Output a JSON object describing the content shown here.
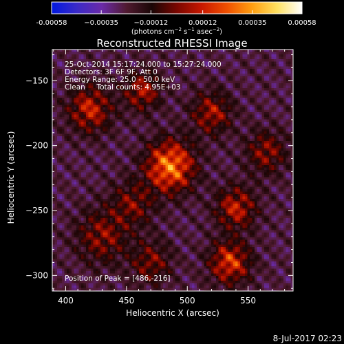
{
  "chart_data": {
    "type": "heatmap",
    "title": "Reconstructed RHESSI Image",
    "xlabel": "Heliocentric X (arcsec)",
    "ylabel": "Heliocentric Y (arcsec)",
    "xlim": [
      389,
      587
    ],
    "ylim": [
      -312,
      -126
    ],
    "x_ticks": [
      400,
      450,
      500,
      550
    ],
    "y_ticks": [
      -150,
      -200,
      -250,
      -300
    ],
    "colorbar": {
      "range": [
        -0.00058,
        0.00058
      ],
      "tick_values": [
        -0.00058,
        -0.00035,
        -0.00012,
        0.00012,
        0.00035,
        0.00058
      ],
      "tick_labels": [
        "-0.00058",
        "−0.00035",
        "−0.00012",
        "0.00012",
        "0.00035",
        "0.00058"
      ],
      "unit_label_parts": [
        "(photons cm",
        "−2",
        " s",
        "−1",
        " asec",
        "−2",
        ")"
      ],
      "colormap": [
        "#0018e0",
        "#3a2ac8",
        "#6a2aa8",
        "#501a30",
        "#1a0606",
        "#7a0600",
        "#c81800",
        "#f05000",
        "#ff9e10",
        "#ffe060",
        "#ffffff"
      ]
    },
    "annotations": [
      "25-Oct-2014 15:17:24.000 to 15:27:24.000",
      "Detectors: 3F 6F 9F, Att 0",
      "Energy Range: 25.0 - 50.0 keV",
      "Clean     Total counts: 4.95E+03",
      "Position of Peak = [486,-216]"
    ],
    "sources": [
      {
        "x": 486,
        "y": -216,
        "strength": 1.0,
        "width": 13
      },
      {
        "x": 420,
        "y": -172,
        "strength": 0.62,
        "width": 12
      },
      {
        "x": 463,
        "y": -158,
        "strength": 0.55,
        "width": 10
      },
      {
        "x": 540,
        "y": -248,
        "strength": 0.6,
        "width": 11
      },
      {
        "x": 535,
        "y": -290,
        "strength": 0.72,
        "width": 11
      },
      {
        "x": 520,
        "y": -175,
        "strength": 0.52,
        "width": 11
      },
      {
        "x": 430,
        "y": -270,
        "strength": 0.45,
        "width": 14
      },
      {
        "x": 565,
        "y": -205,
        "strength": 0.45,
        "width": 11
      },
      {
        "x": 470,
        "y": -290,
        "strength": 0.42,
        "width": 11
      },
      {
        "x": 455,
        "y": -245,
        "strength": 0.4,
        "width": 12
      }
    ],
    "background_level": 0.08
  },
  "footer": {
    "timestamp": "8-Jul-2017 02:23"
  }
}
